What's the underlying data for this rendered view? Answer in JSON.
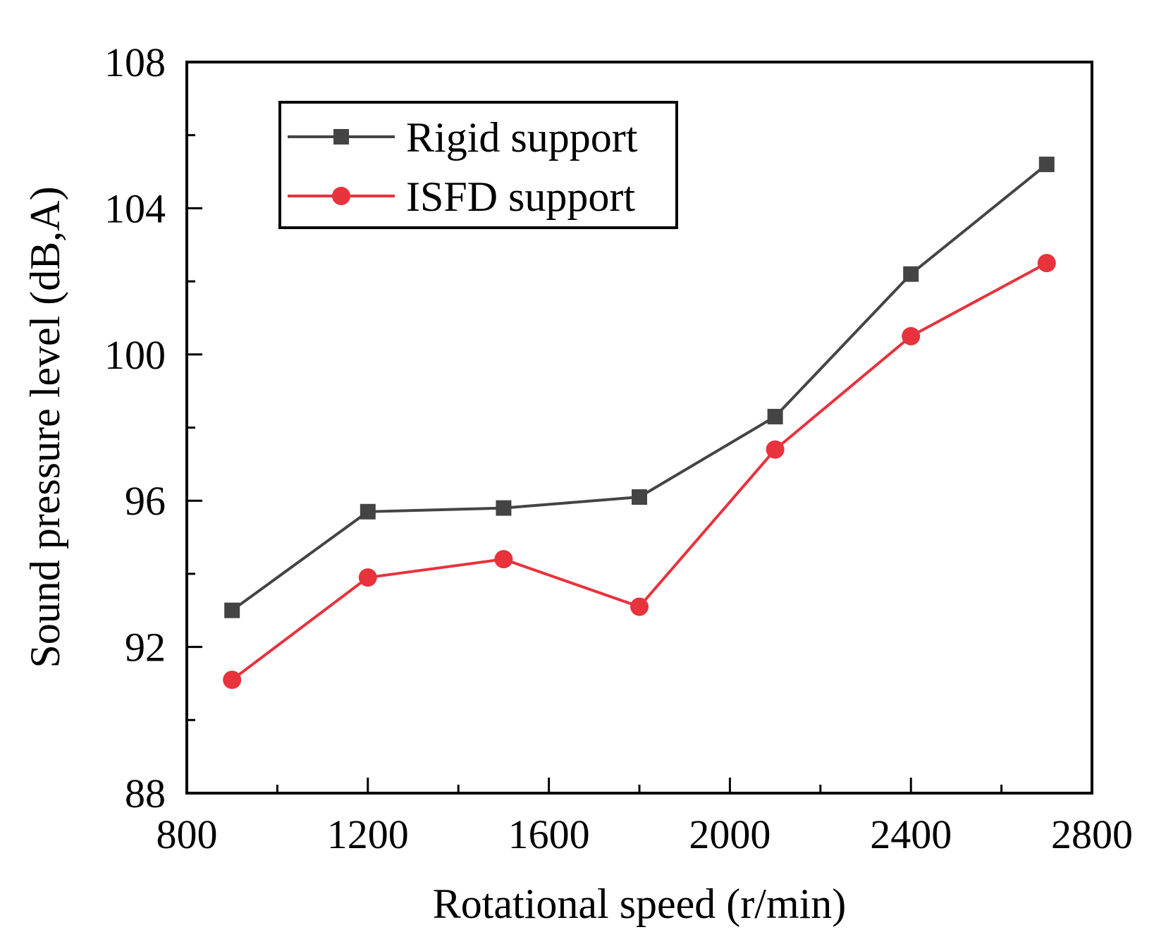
{
  "chart_data": {
    "type": "line",
    "title": "",
    "xlabel": "Rotational speed (r/min)",
    "ylabel": "Sound pressure level (dB,A)",
    "xlim": [
      800,
      2800
    ],
    "ylim": [
      88,
      108
    ],
    "x_ticks": [
      800,
      1200,
      1600,
      2000,
      2400,
      2800
    ],
    "x_tick_labels": [
      "800",
      "1200",
      "1600",
      "2000",
      "2400",
      "2800"
    ],
    "x_minor_step": 200,
    "y_ticks": [
      88,
      92,
      96,
      100,
      104,
      108
    ],
    "y_tick_labels": [
      "88",
      "92",
      "96",
      "100",
      "104",
      "108"
    ],
    "y_minor_step": 2,
    "grid": false,
    "legend_position": "top-left",
    "x": [
      900,
      1200,
      1500,
      1800,
      2100,
      2400,
      2700
    ],
    "series": [
      {
        "name": "Rigid support",
        "marker": "square",
        "color": "#444444",
        "values": [
          93.0,
          95.7,
          95.8,
          96.1,
          98.3,
          102.2,
          105.2
        ]
      },
      {
        "name": "ISFD support",
        "marker": "circle",
        "color": "#e8323c",
        "values": [
          91.1,
          93.9,
          94.4,
          93.1,
          97.4,
          100.5,
          102.5
        ]
      }
    ]
  }
}
